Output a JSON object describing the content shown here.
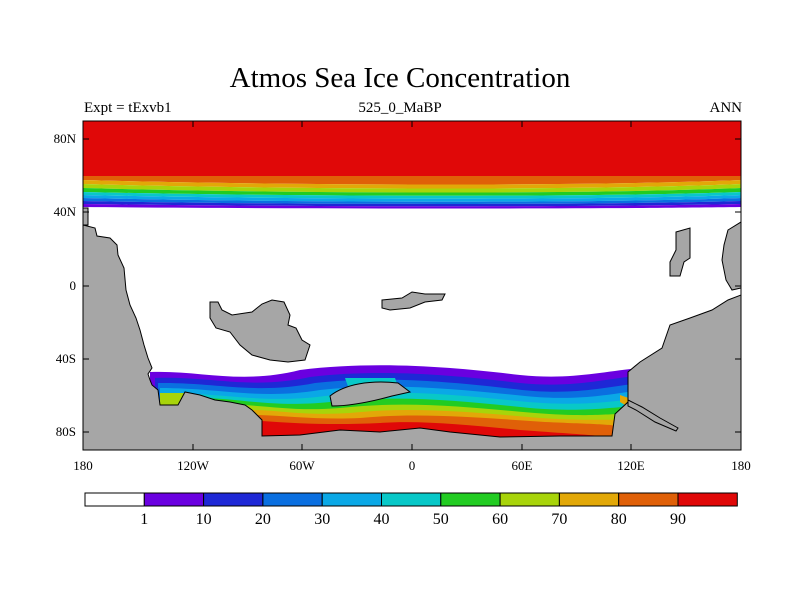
{
  "map": {
    "title": "Atmos Sea Ice Concentration",
    "left_label": "Expt = tExvb1",
    "center_label": "525_0_MaBP",
    "right_label": "ANN",
    "lat_ticks": [
      "80N",
      "40N",
      "0",
      "40S",
      "80S"
    ],
    "lon_ticks": [
      "180",
      "120W",
      "60W",
      "0",
      "60E",
      "120E",
      "180"
    ],
    "land_color": "#a6a6a6",
    "ocean_ice_free_color": "#ffffff"
  },
  "colorbar": {
    "labels": [
      "1",
      "10",
      "20",
      "30",
      "40",
      "50",
      "60",
      "70",
      "80",
      "90"
    ],
    "colors": [
      "#ffffff",
      "#6a00e0",
      "#1e28d6",
      "#0a6fe0",
      "#0aa8e6",
      "#08c8c8",
      "#22cc22",
      "#a8d40a",
      "#e2a808",
      "#e06008",
      "#e00808"
    ]
  }
}
